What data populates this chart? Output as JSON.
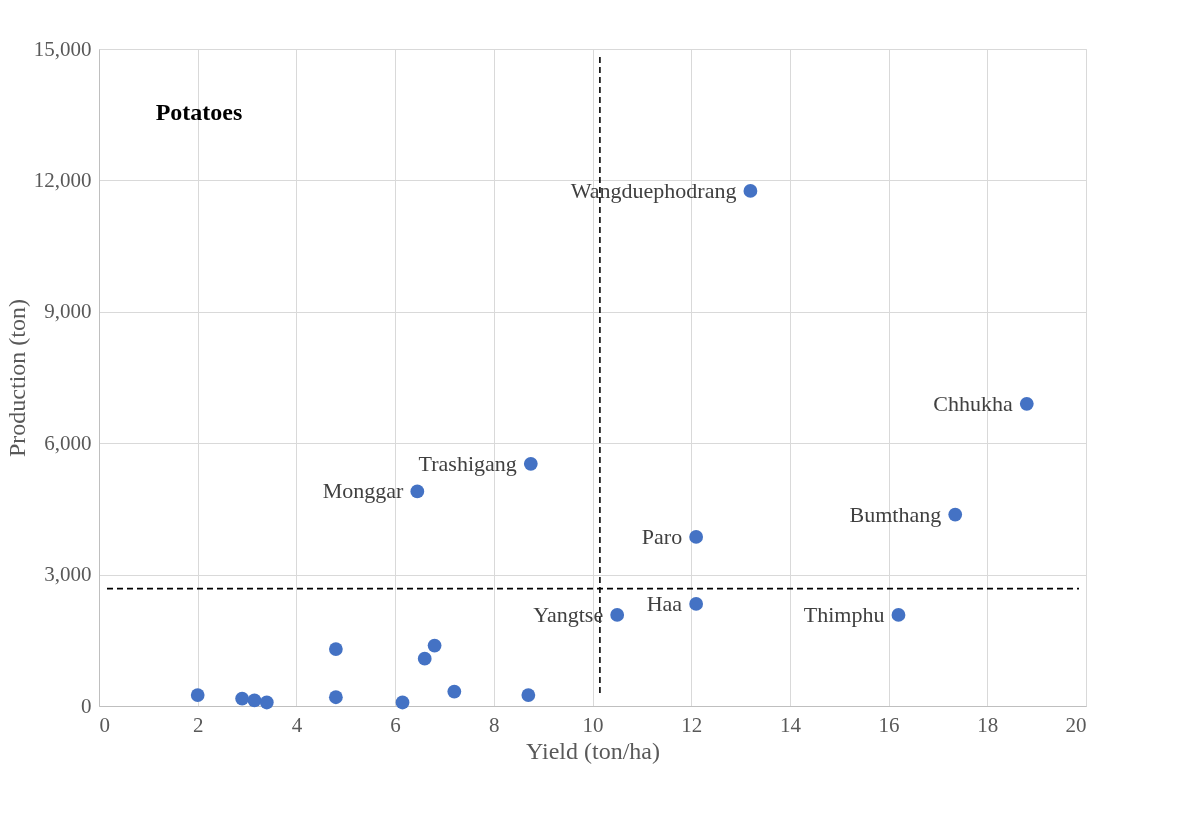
{
  "chart_data": {
    "type": "scatter",
    "title": "Potatoes",
    "xlabel": "Yield (ton/ha)",
    "ylabel": "Production (ton)",
    "x": [
      2.0,
      2.9,
      3.15,
      3.4,
      4.8,
      4.8,
      6.15,
      6.45,
      6.6,
      6.8,
      7.2,
      8.7,
      8.75,
      10.5,
      12.1,
      12.1,
      13.2,
      16.2,
      17.35,
      18.8
    ],
    "series": [
      {
        "color": "#4472c4",
        "values": [
          250,
          170,
          130,
          80,
          1300,
          200,
          80,
          4900,
          1080,
          1380,
          330,
          250,
          5530,
          2080,
          2330,
          3860,
          11760,
          2080,
          4370,
          6900
        ]
      }
    ],
    "annotations": [
      {
        "text": "Wangduephodrang",
        "x": 13.2,
        "y": 11760
      },
      {
        "text": "Chhukha",
        "x": 18.8,
        "y": 6900
      },
      {
        "text": "Trashigang",
        "x": 8.75,
        "y": 5530
      },
      {
        "text": "Monggar",
        "x": 6.45,
        "y": 4900
      },
      {
        "text": "Bumthang",
        "x": 17.35,
        "y": 4370
      },
      {
        "text": "Paro",
        "x": 12.1,
        "y": 3860
      },
      {
        "text": "Haa",
        "x": 12.1,
        "y": 2330
      },
      {
        "text": "Yangtse",
        "x": 10.5,
        "y": 2080
      },
      {
        "text": "Thimphu",
        "x": 16.2,
        "y": 2080
      }
    ],
    "ref_lines": [
      {
        "axis": "x",
        "value": 10.15,
        "color": "#000000",
        "line_style": "dashed"
      },
      {
        "axis": "y",
        "value": 2680,
        "color": "#000000",
        "line_style": "dashed"
      }
    ],
    "xlim": [
      0,
      20
    ],
    "xticks": [
      0,
      2,
      4,
      6,
      8,
      10,
      12,
      14,
      16,
      18,
      20
    ],
    "ylim": [
      0,
      15000
    ],
    "yticks": [
      0,
      {
        "value": 3000,
        "label": "3,000"
      },
      {
        "value": 6000,
        "label": "6,000"
      },
      {
        "value": 9000,
        "label": "9,000"
      },
      {
        "value": 12000,
        "label": "12,000"
      },
      {
        "value": 15000,
        "label": "15,000"
      }
    ],
    "grid": true,
    "marker": "circle"
  }
}
